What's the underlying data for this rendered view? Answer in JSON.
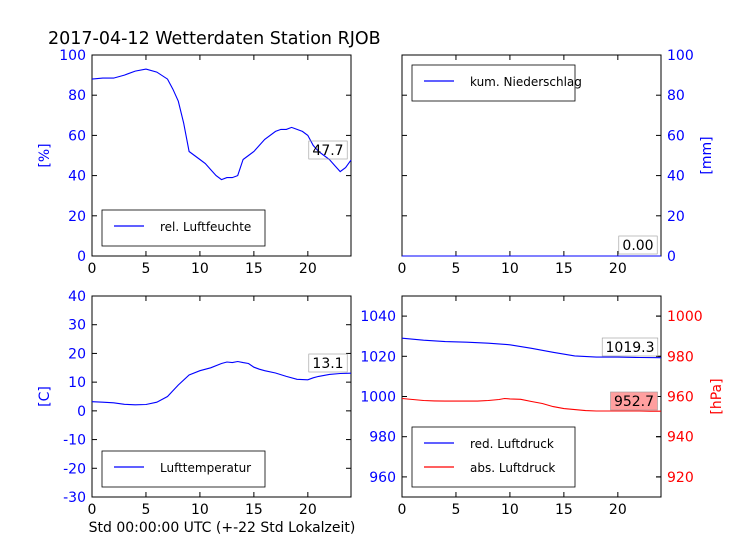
{
  "title": "2017-04-12 Wetterdaten Station RJOB",
  "xlabel": "Std 00:00:00 UTC (+-22 Std Lokalzeit)",
  "colors": {
    "blue": "#0000ff",
    "red": "#ff0000",
    "box_red": "#ff9f9f"
  },
  "chart_data": [
    {
      "type": "line",
      "panel": "top-left",
      "xlim": [
        0,
        24
      ],
      "ylim": [
        0,
        100
      ],
      "xticks": [
        0,
        5,
        10,
        15,
        20
      ],
      "yticks": [
        0,
        20,
        40,
        60,
        80,
        100
      ],
      "ylabel": "[%]",
      "ylabel_side": "left",
      "ylabel_color": "#0000ff",
      "legend_loc": "lower-left",
      "annotation": "47.7",
      "series": [
        {
          "name": "rel. Luftfeuchte",
          "color": "#0000ff",
          "x": [
            0,
            1,
            2,
            3,
            4,
            5,
            6,
            7,
            7.5,
            8,
            8.5,
            9,
            9.5,
            10,
            10.5,
            11,
            11.5,
            12,
            12.5,
            13,
            13.5,
            14,
            14.5,
            15,
            16,
            17,
            17.5,
            18,
            18.5,
            19,
            19.5,
            20,
            20.5,
            21,
            21.5,
            22,
            22.5,
            23,
            23.5,
            24
          ],
          "y": [
            88,
            88.5,
            88.5,
            90,
            92,
            93,
            91.5,
            88,
            83,
            77,
            66,
            52,
            50,
            48,
            46,
            43,
            40,
            38,
            39,
            39,
            40,
            48,
            50,
            52,
            58,
            62,
            63,
            63,
            64,
            63,
            62,
            60,
            55,
            52,
            50,
            48,
            45,
            42,
            44,
            47.7
          ]
        }
      ]
    },
    {
      "type": "line",
      "panel": "top-right",
      "xlim": [
        0,
        24
      ],
      "ylim": [
        0,
        100
      ],
      "xticks": [
        0,
        5,
        10,
        15,
        20
      ],
      "yticks": [
        0,
        20,
        40,
        60,
        80,
        100
      ],
      "ylabel": "[mm]",
      "ylabel_side": "right",
      "ylabel_color": "#0000ff",
      "legend_loc": "upper-left",
      "annotation": "0.00",
      "series": [
        {
          "name": "kum. Niederschlag",
          "color": "#0000ff",
          "x": [
            0,
            24
          ],
          "y": [
            0,
            0
          ]
        }
      ]
    },
    {
      "type": "line",
      "panel": "bottom-left",
      "xlim": [
        0,
        24
      ],
      "ylim": [
        -30,
        40
      ],
      "xticks": [
        0,
        5,
        10,
        15,
        20
      ],
      "yticks": [
        -30,
        -20,
        -10,
        0,
        10,
        20,
        30,
        40
      ],
      "ylabel": "[C]",
      "ylabel_side": "left",
      "ylabel_color": "#0000ff",
      "legend_loc": "lower-left",
      "annotation": "13.1",
      "series": [
        {
          "name": "Lufttemperatur",
          "color": "#0000ff",
          "x": [
            0,
            1,
            2,
            3,
            4,
            5,
            6,
            7,
            7.5,
            8,
            9,
            10,
            11,
            12,
            12.5,
            13,
            13.5,
            14,
            14.5,
            15,
            15.5,
            16,
            17,
            18,
            19,
            20,
            20.5,
            21,
            22,
            23,
            24
          ],
          "y": [
            3.2,
            3,
            2.8,
            2.3,
            2.1,
            2.2,
            3,
            5,
            7,
            9,
            12.5,
            14,
            15,
            16.5,
            17,
            16.8,
            17.2,
            16.8,
            16.5,
            15.2,
            14.5,
            14,
            13.2,
            12,
            11,
            10.8,
            11.5,
            12,
            12.7,
            13,
            13.1
          ]
        }
      ]
    },
    {
      "type": "line",
      "panel": "bottom-right",
      "xlim": [
        0,
        24
      ],
      "ylim": [
        950,
        1050
      ],
      "xticks": [
        0,
        5,
        10,
        15,
        20
      ],
      "yticks": [
        960,
        980,
        1000,
        1020,
        1040
      ],
      "y2lim": [
        910,
        1010
      ],
      "y2ticks": [
        920,
        940,
        960,
        980,
        1000
      ],
      "y2label": "[hPa]",
      "y2label_color": "#ff0000",
      "legend_loc": "lower-left",
      "annotations": [
        "1019.3",
        "952.7"
      ],
      "series": [
        {
          "name": "red. Luftdruck",
          "color": "#0000ff",
          "axis": "left",
          "x": [
            0,
            2,
            4,
            6,
            8,
            10,
            12,
            14,
            16,
            18,
            20,
            22,
            24
          ],
          "y": [
            1029,
            1028,
            1027.3,
            1027,
            1026.5,
            1025.7,
            1024,
            1022,
            1020.2,
            1019.6,
            1019.6,
            1019.4,
            1019.3
          ]
        },
        {
          "name": "abs. Luftdruck",
          "color": "#ff0000",
          "axis": "right",
          "x": [
            0,
            1,
            2,
            3,
            4,
            5,
            6,
            7,
            8,
            9,
            9.5,
            10,
            11,
            12,
            13,
            14,
            15,
            16,
            17,
            18,
            19,
            20,
            21,
            22,
            23,
            24
          ],
          "y": [
            959,
            958.5,
            958,
            957.8,
            957.7,
            957.7,
            957.7,
            957.7,
            958,
            958.5,
            959,
            958.8,
            958.6,
            957.5,
            956.5,
            955,
            954,
            953.5,
            953,
            952.8,
            952.8,
            952.8,
            952.8,
            952.8,
            952.7,
            952.7
          ]
        }
      ]
    }
  ]
}
